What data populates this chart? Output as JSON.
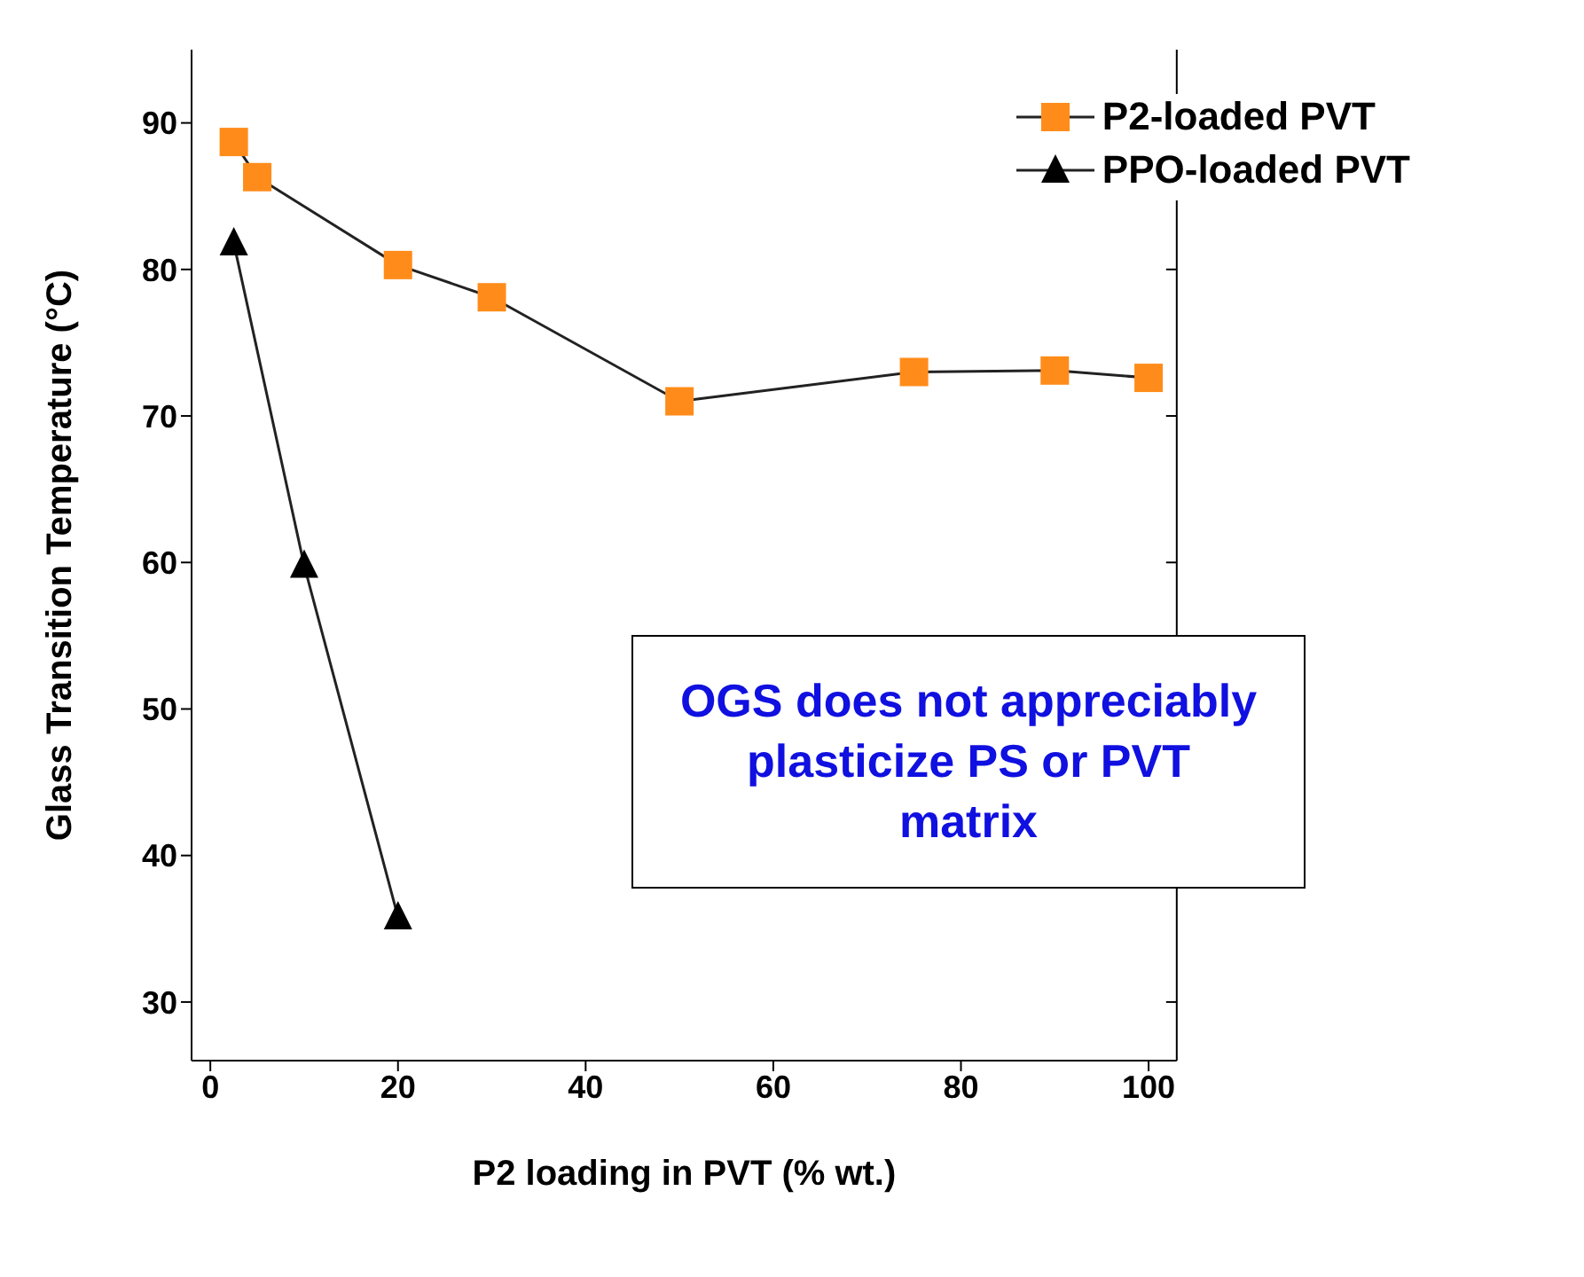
{
  "chart_data": {
    "type": "line",
    "xlabel": "P2 loading in PVT (% wt.)",
    "ylabel": "Glass Transition Temperature (°C)",
    "xlim": [
      -2,
      103
    ],
    "xticks": [
      0,
      20,
      40,
      60,
      80,
      100
    ],
    "ylim": [
      26,
      95
    ],
    "yticks": [
      30,
      40,
      50,
      60,
      70,
      80,
      90
    ],
    "grid": false,
    "legend": "top right",
    "series": [
      {
        "name": "P2-loaded PVT",
        "color": "#ff8c1a",
        "marker": "square",
        "x": [
          2.5,
          5,
          20,
          30,
          50,
          75,
          90,
          100
        ],
        "values": [
          88.7,
          86.3,
          80.3,
          78.1,
          71,
          73,
          73.1,
          72.6
        ]
      },
      {
        "name": "PPO-loaded PVT",
        "color": "#000000",
        "marker": "triangle",
        "x": [
          2.5,
          10,
          20
        ],
        "values": [
          81.8,
          59.8,
          35.8
        ]
      }
    ],
    "annotations": [
      "OGS does not appreciably plasticize PS or PVT matrix"
    ]
  }
}
